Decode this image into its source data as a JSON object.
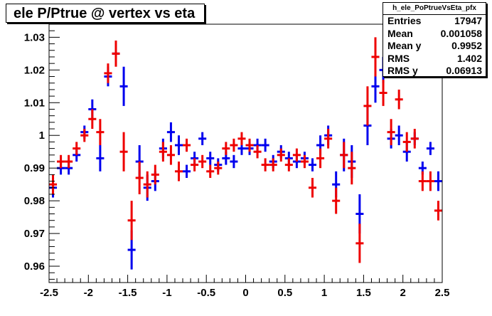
{
  "title": "ele P/Ptrue @ vertex vs eta",
  "stats": {
    "name": "h_ele_PoPtrueVsEta_pfx",
    "rows": [
      {
        "label": "Entries",
        "value": "17947"
      },
      {
        "label": "Mean",
        "value": "0.001058"
      },
      {
        "label": "Mean y",
        "value": "0.9952"
      },
      {
        "label": "RMS",
        "value": "1.402"
      },
      {
        "label": "RMS y",
        "value": "0.06913"
      }
    ]
  },
  "chart_data": {
    "type": "scatter",
    "title": "ele P/Ptrue @ vertex vs eta",
    "xlim": [
      -2.5,
      2.5
    ],
    "ylim": [
      0.955,
      1.034
    ],
    "x_ticks": [
      -2.5,
      -2,
      -1.5,
      -1,
      -0.5,
      0,
      0.5,
      1,
      1.5,
      2,
      2.5
    ],
    "x_tick_labels": [
      "-2.5",
      "-2",
      "-1.5",
      "-1",
      "-0.5",
      "0",
      "0.5",
      "1",
      "1.5",
      "2",
      "2.5"
    ],
    "y_ticks": [
      0.96,
      0.97,
      0.98,
      0.99,
      1.0,
      1.01,
      1.02,
      1.03
    ],
    "y_tick_labels": [
      "0.96",
      "0.97",
      "0.98",
      "0.99",
      "1",
      "1.01",
      "1.02",
      "1.03"
    ],
    "grid": false,
    "series": [
      {
        "color": "#0000ee",
        "x_halfwidth": 0.05,
        "points": [
          {
            "x": -2.45,
            "y": 0.984,
            "err": 0.003
          },
          {
            "x": -2.35,
            "y": 0.99,
            "err": 0.002
          },
          {
            "x": -2.25,
            "y": 0.99,
            "err": 0.002
          },
          {
            "x": -2.15,
            "y": 0.994,
            "err": 0.002
          },
          {
            "x": -2.05,
            "y": 1.001,
            "err": 0.002
          },
          {
            "x": -1.95,
            "y": 1.008,
            "err": 0.003
          },
          {
            "x": -1.85,
            "y": 0.993,
            "err": 0.004
          },
          {
            "x": -1.75,
            "y": 1.018,
            "err": 0.003
          },
          {
            "x": -1.65,
            "y": 1.025,
            "err": 0.003
          },
          {
            "x": -1.55,
            "y": 1.015,
            "err": 0.006
          },
          {
            "x": -1.45,
            "y": 0.965,
            "err": 0.006
          },
          {
            "x": -1.35,
            "y": 0.992,
            "err": 0.005
          },
          {
            "x": -1.25,
            "y": 0.984,
            "err": 0.004
          },
          {
            "x": -1.15,
            "y": 0.986,
            "err": 0.003
          },
          {
            "x": -1.05,
            "y": 0.996,
            "err": 0.003
          },
          {
            "x": -0.95,
            "y": 1.001,
            "err": 0.003
          },
          {
            "x": -0.85,
            "y": 0.997,
            "err": 0.003
          },
          {
            "x": -0.75,
            "y": 0.989,
            "err": 0.002
          },
          {
            "x": -0.65,
            "y": 0.993,
            "err": 0.002
          },
          {
            "x": -0.55,
            "y": 0.999,
            "err": 0.002
          },
          {
            "x": -0.45,
            "y": 0.993,
            "err": 0.002
          },
          {
            "x": -0.35,
            "y": 0.991,
            "err": 0.002
          },
          {
            "x": -0.25,
            "y": 0.993,
            "err": 0.002
          },
          {
            "x": -0.15,
            "y": 0.992,
            "err": 0.002
          },
          {
            "x": -0.05,
            "y": 0.996,
            "err": 0.002
          },
          {
            "x": 0.05,
            "y": 0.996,
            "err": 0.002
          },
          {
            "x": 0.15,
            "y": 0.997,
            "err": 0.002
          },
          {
            "x": 0.25,
            "y": 0.997,
            "err": 0.002
          },
          {
            "x": 0.35,
            "y": 0.992,
            "err": 0.002
          },
          {
            "x": 0.45,
            "y": 0.995,
            "err": 0.002
          },
          {
            "x": 0.55,
            "y": 0.993,
            "err": 0.002
          },
          {
            "x": 0.65,
            "y": 0.992,
            "err": 0.002
          },
          {
            "x": 0.75,
            "y": 0.993,
            "err": 0.002
          },
          {
            "x": 0.85,
            "y": 0.991,
            "err": 0.002
          },
          {
            "x": 0.95,
            "y": 0.997,
            "err": 0.003
          },
          {
            "x": 1.05,
            "y": 1.0,
            "err": 0.003
          },
          {
            "x": 1.15,
            "y": 0.985,
            "err": 0.004
          },
          {
            "x": 1.25,
            "y": 0.994,
            "err": 0.005
          },
          {
            "x": 1.35,
            "y": 0.992,
            "err": 0.005
          },
          {
            "x": 1.45,
            "y": 0.976,
            "err": 0.006
          },
          {
            "x": 1.55,
            "y": 1.003,
            "err": 0.006
          },
          {
            "x": 1.65,
            "y": 1.015,
            "err": 0.005
          },
          {
            "x": 1.75,
            "y": 1.02,
            "err": 0.004
          },
          {
            "x": 1.85,
            "y": 0.999,
            "err": 0.003
          },
          {
            "x": 1.95,
            "y": 1.0,
            "err": 0.003
          },
          {
            "x": 2.05,
            "y": 0.995,
            "err": 0.003
          },
          {
            "x": 2.15,
            "y": 0.999,
            "err": 0.002
          },
          {
            "x": 2.25,
            "y": 0.99,
            "err": 0.002
          },
          {
            "x": 2.35,
            "y": 0.996,
            "err": 0.002
          },
          {
            "x": 2.45,
            "y": 0.986,
            "err": 0.003
          }
        ]
      },
      {
        "color": "#ee0000",
        "x_halfwidth": 0.05,
        "points": [
          {
            "x": -2.45,
            "y": 0.985,
            "err": 0.003
          },
          {
            "x": -2.35,
            "y": 0.992,
            "err": 0.002
          },
          {
            "x": -2.25,
            "y": 0.992,
            "err": 0.002
          },
          {
            "x": -2.15,
            "y": 0.996,
            "err": 0.002
          },
          {
            "x": -2.05,
            "y": 1.0,
            "err": 0.002
          },
          {
            "x": -1.95,
            "y": 1.005,
            "err": 0.003
          },
          {
            "x": -1.85,
            "y": 1.001,
            "err": 0.004
          },
          {
            "x": -1.75,
            "y": 1.019,
            "err": 0.003
          },
          {
            "x": -1.65,
            "y": 1.025,
            "err": 0.004
          },
          {
            "x": -1.55,
            "y": 0.995,
            "err": 0.006
          },
          {
            "x": -1.45,
            "y": 0.974,
            "err": 0.006
          },
          {
            "x": -1.35,
            "y": 0.987,
            "err": 0.005
          },
          {
            "x": -1.25,
            "y": 0.985,
            "err": 0.004
          },
          {
            "x": -1.15,
            "y": 0.988,
            "err": 0.003
          },
          {
            "x": -1.05,
            "y": 0.995,
            "err": 0.003
          },
          {
            "x": -0.95,
            "y": 0.994,
            "err": 0.003
          },
          {
            "x": -0.85,
            "y": 0.989,
            "err": 0.003
          },
          {
            "x": -0.75,
            "y": 0.997,
            "err": 0.002
          },
          {
            "x": -0.65,
            "y": 0.991,
            "err": 0.002
          },
          {
            "x": -0.55,
            "y": 0.992,
            "err": 0.002
          },
          {
            "x": -0.45,
            "y": 0.989,
            "err": 0.002
          },
          {
            "x": -0.35,
            "y": 0.99,
            "err": 0.002
          },
          {
            "x": -0.25,
            "y": 0.996,
            "err": 0.002
          },
          {
            "x": -0.15,
            "y": 0.997,
            "err": 0.002
          },
          {
            "x": -0.05,
            "y": 0.999,
            "err": 0.002
          },
          {
            "x": 0.05,
            "y": 0.997,
            "err": 0.002
          },
          {
            "x": 0.15,
            "y": 0.995,
            "err": 0.002
          },
          {
            "x": 0.25,
            "y": 0.991,
            "err": 0.002
          },
          {
            "x": 0.35,
            "y": 0.991,
            "err": 0.002
          },
          {
            "x": 0.45,
            "y": 0.994,
            "err": 0.002
          },
          {
            "x": 0.55,
            "y": 0.991,
            "err": 0.002
          },
          {
            "x": 0.65,
            "y": 0.994,
            "err": 0.002
          },
          {
            "x": 0.75,
            "y": 0.992,
            "err": 0.002
          },
          {
            "x": 0.85,
            "y": 0.984,
            "err": 0.003
          },
          {
            "x": 0.95,
            "y": 0.993,
            "err": 0.003
          },
          {
            "x": 1.05,
            "y": 0.999,
            "err": 0.003
          },
          {
            "x": 1.15,
            "y": 0.98,
            "err": 0.004
          },
          {
            "x": 1.25,
            "y": 0.994,
            "err": 0.004
          },
          {
            "x": 1.35,
            "y": 0.99,
            "err": 0.005
          },
          {
            "x": 1.45,
            "y": 0.967,
            "err": 0.006
          },
          {
            "x": 1.55,
            "y": 1.009,
            "err": 0.006
          },
          {
            "x": 1.65,
            "y": 1.024,
            "err": 0.006
          },
          {
            "x": 1.75,
            "y": 1.013,
            "err": 0.004
          },
          {
            "x": 1.85,
            "y": 1.001,
            "err": 0.004
          },
          {
            "x": 1.95,
            "y": 1.011,
            "err": 0.003
          },
          {
            "x": 2.05,
            "y": 0.998,
            "err": 0.003
          },
          {
            "x": 2.15,
            "y": 0.999,
            "err": 0.003
          },
          {
            "x": 2.25,
            "y": 0.986,
            "err": 0.003
          },
          {
            "x": 2.35,
            "y": 0.986,
            "err": 0.003
          },
          {
            "x": 2.45,
            "y": 0.977,
            "err": 0.003
          }
        ]
      }
    ]
  }
}
